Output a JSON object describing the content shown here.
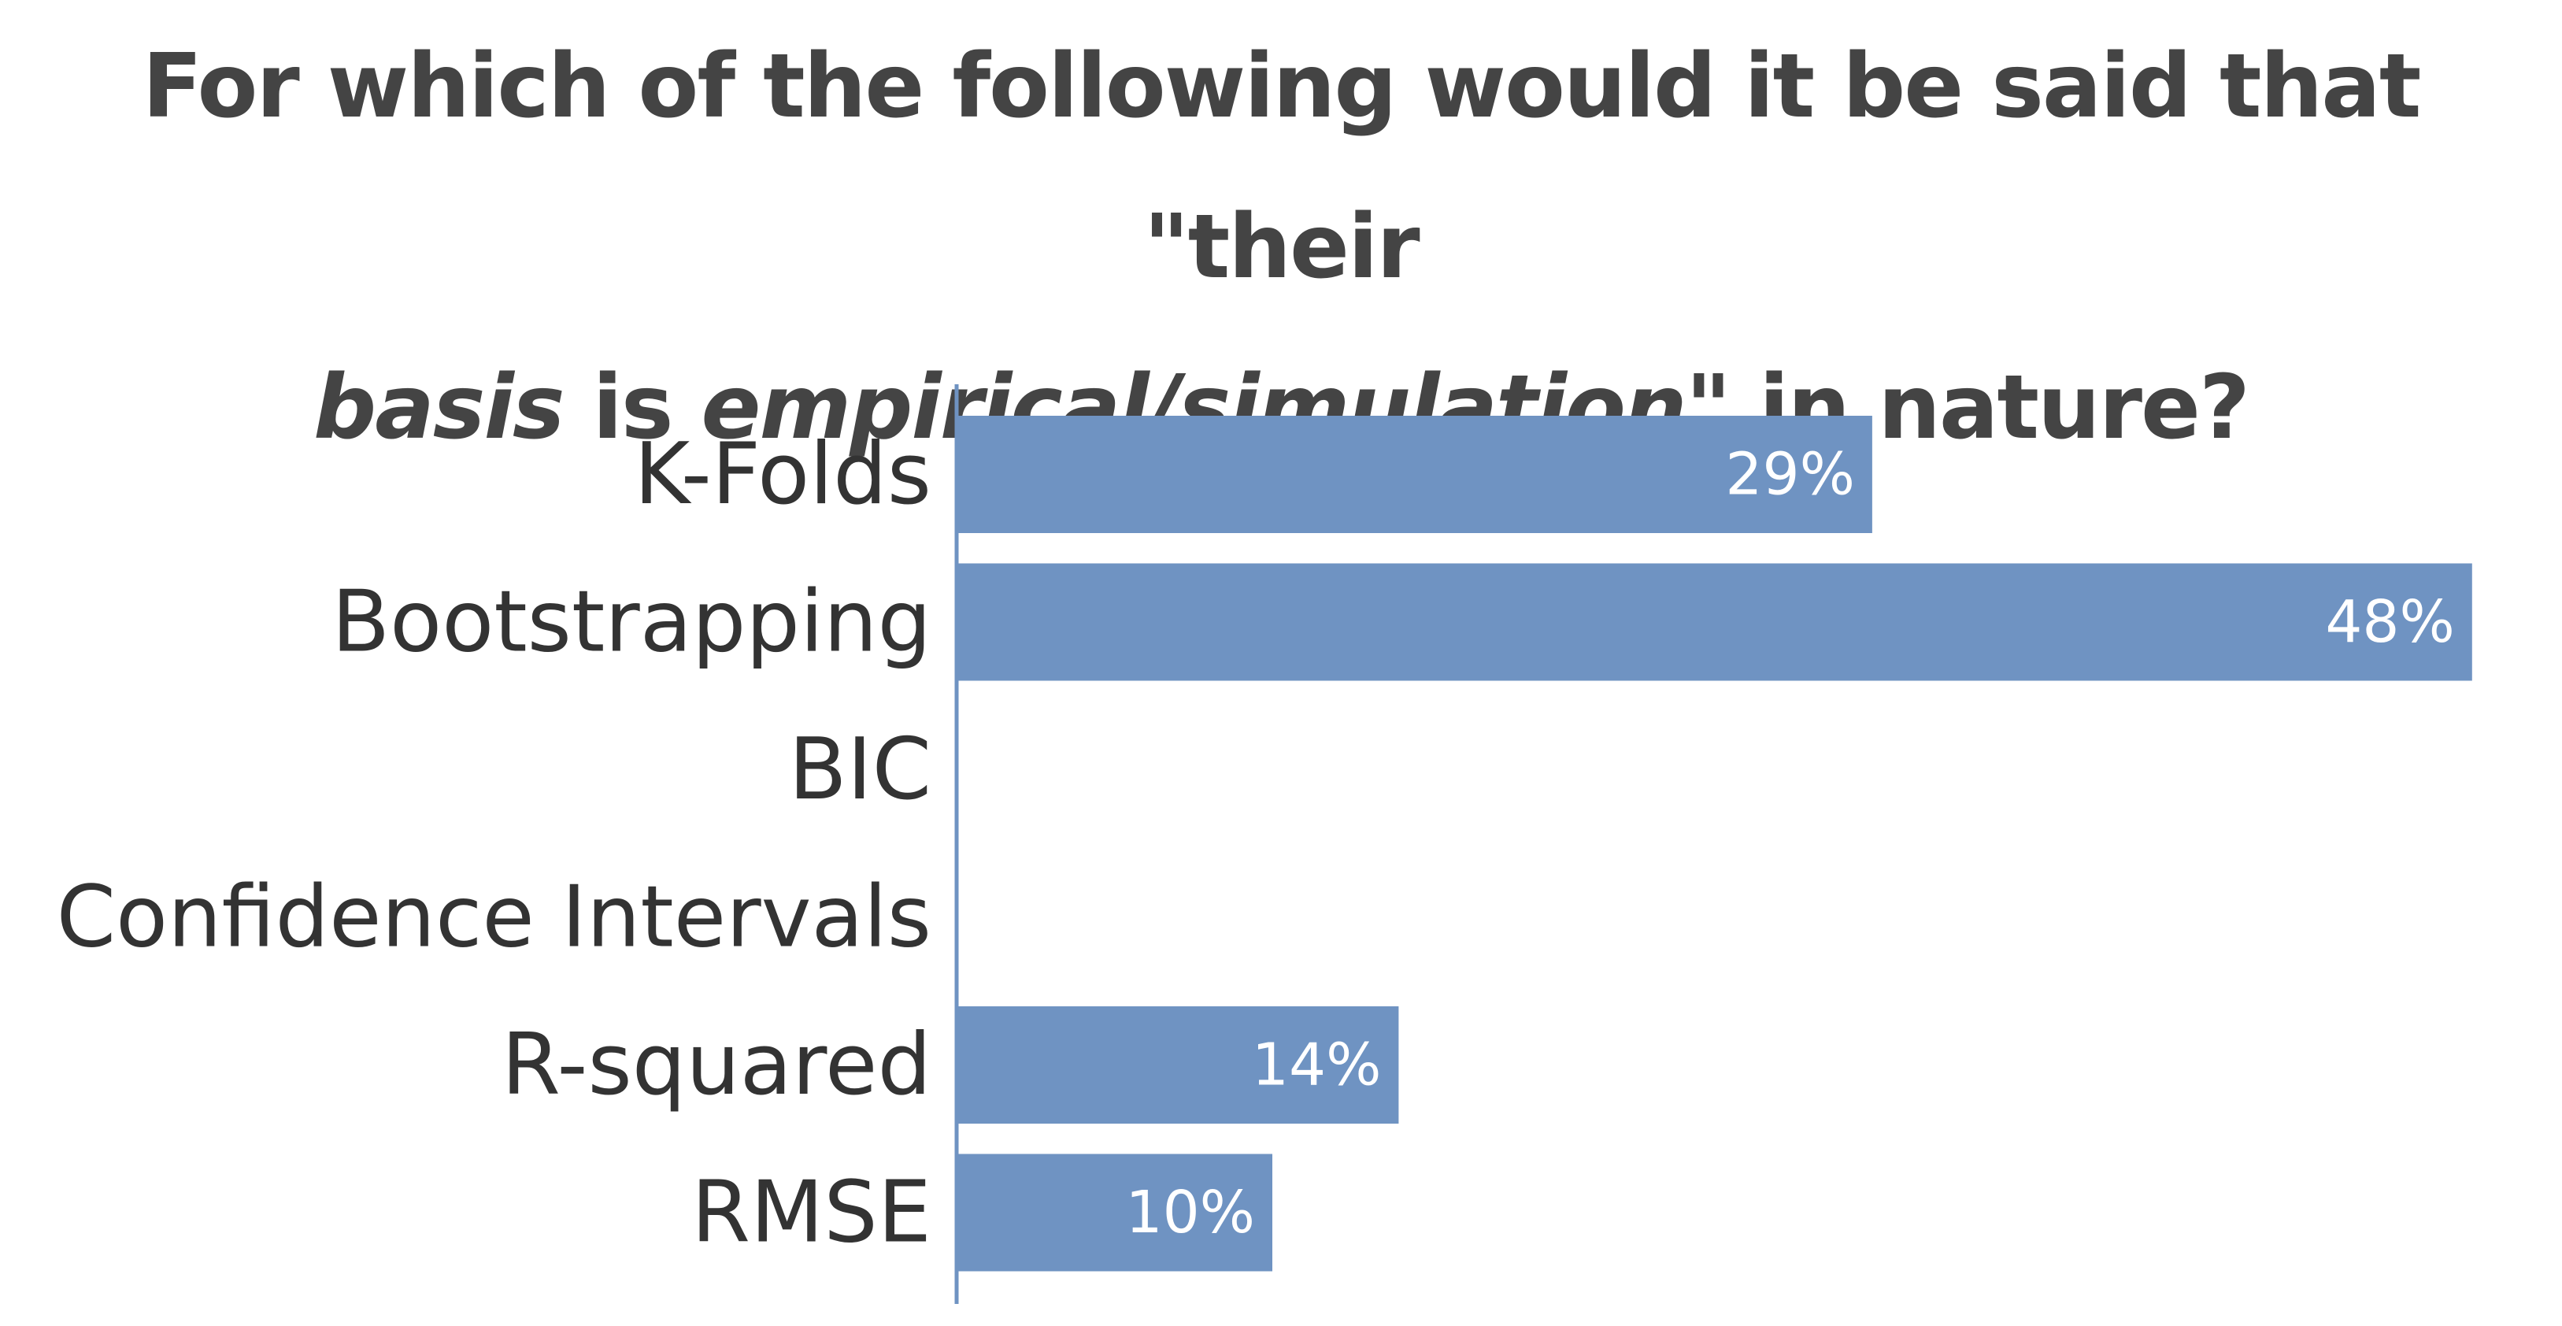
{
  "chart_data": {
    "type": "bar",
    "orientation": "horizontal",
    "title": {
      "line1": "For which of the following would it be said that \"their",
      "line2_parts": [
        {
          "text": "basis",
          "italic": true
        },
        {
          "text": " is ",
          "italic": false
        },
        {
          "text": "empirical/simulation",
          "italic": true
        },
        {
          "text": "\" in nature?",
          "italic": false
        }
      ]
    },
    "categories": [
      "K-Folds",
      "Bootstrapping",
      "BIC",
      "Confidence Intervals",
      "R-squared",
      "RMSE"
    ],
    "values": [
      29,
      48,
      0,
      0,
      14,
      10
    ],
    "data_labels": [
      "29%",
      "48%",
      "",
      "",
      "14%",
      "10%"
    ],
    "xlabel": "",
    "ylabel": "",
    "grid": false,
    "legend": "none",
    "bar_color": "#6f93c2",
    "axis_color": "#6f93c2"
  }
}
